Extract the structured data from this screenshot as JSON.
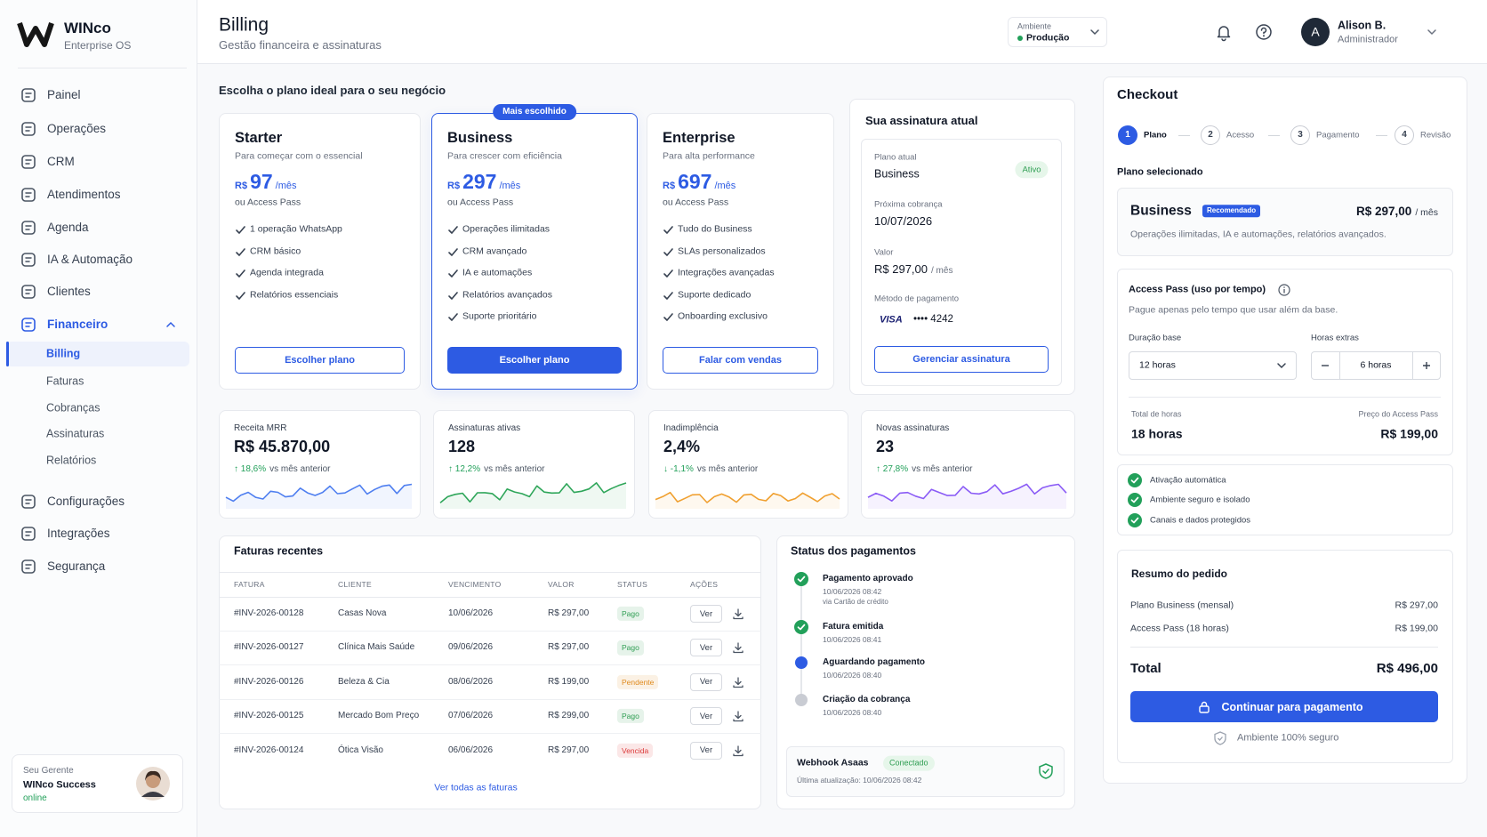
{
  "sidebar": {
    "brand_name": "WINco",
    "brand_subtitle": "Enterprise OS",
    "nav": [
      "Painel",
      "Operações",
      "CRM",
      "Atendimentos",
      "Agenda",
      "IA & Automação",
      "Clientes",
      "Financeiro"
    ],
    "subnav": [
      "Billing",
      "Faturas",
      "Cobranças",
      "Assinaturas",
      "Relatórios"
    ],
    "nav_bottom": [
      "Configurações",
      "Integrações",
      "Segurança"
    ],
    "manager": {
      "label": "Seu Gerente",
      "name": "WINco Success",
      "status": "online"
    }
  },
  "header": {
    "title": "Billing",
    "subtitle": "Gestão financeira e assinaturas",
    "env_label": "Ambiente",
    "env_value": "Produção",
    "avatar": "A",
    "user_name": "Alison B.",
    "user_role": "Administrador"
  },
  "plans_heading": "Escolha o plano ideal para o seu negócio",
  "plans": [
    {
      "name": "Starter",
      "description": "Para começar com o essencial",
      "currency": "R$",
      "price": 97,
      "period": "/mês",
      "alt": "ou Access Pass",
      "features": [
        "1 operação WhatsApp",
        "CRM básico",
        "Agenda integrada",
        "Relatórios essenciais"
      ],
      "button": "Escolher plano"
    },
    {
      "name": "Business",
      "badge": "Mais escolhido",
      "description": "Para crescer com eficiência",
      "currency": "R$",
      "price": 297,
      "period": "/mês",
      "alt": "ou Access Pass",
      "features": [
        "Operações ilimitadas",
        "CRM avançado",
        "IA e automações",
        "Relatórios avançados",
        "Suporte prioritário"
      ],
      "button": "Escolher plano"
    },
    {
      "name": "Enterprise",
      "description": "Para alta performance",
      "currency": "R$",
      "price": 697,
      "period": "/mês",
      "alt": "ou Access Pass",
      "features": [
        "Tudo do Business",
        "SLAs personalizados",
        "Integrações avançadas",
        "Suporte dedicado",
        "Onboarding exclusivo"
      ],
      "button": "Falar com vendas"
    }
  ],
  "subscription": {
    "title": "Sua assinatura atual",
    "plan_label": "Plano atual",
    "plan": "Business",
    "status": "Ativo",
    "next_label": "Próxima cobrança",
    "next": "10/07/2026",
    "value_label": "Valor",
    "value": "R$ 297,00",
    "period": "/ mês",
    "method_label": "Método de pagamento",
    "card_brand": "VISA",
    "card_number": "•••• 4242",
    "button": "Gerenciar assinatura"
  },
  "kpis": [
    {
      "label": "Receita MRR",
      "value": "R$ 45.870,00",
      "change": "↑ 18,6%",
      "change_text": "vs mês anterior",
      "color": "#4f7ff0"
    },
    {
      "label": "Assinaturas ativas",
      "value": "128",
      "change": "↑ 12,2%",
      "change_text": "vs mês anterior",
      "color": "#2fa65a"
    },
    {
      "label": "Inadimplência",
      "value": "2,4%",
      "change": "↓ -1,1%",
      "change_text": "vs mês anterior",
      "color": "#f0a030"
    },
    {
      "label": "Novas assinaturas",
      "value": "23",
      "change": "↑ 27,8%",
      "change_text": "vs mês anterior",
      "color": "#8b5cf6"
    }
  ],
  "invoices": {
    "title": "Faturas recentes",
    "columns": [
      "FATURA",
      "CLIENTE",
      "VENCIMENTO",
      "VALOR",
      "STATUS",
      "AÇÕES"
    ],
    "rows": [
      {
        "invoice": "#INV-2026-00128",
        "client": "Casas Nova",
        "due": "10/06/2026",
        "value": "R$ 297,00",
        "status": "Pago",
        "status_color": "#2f9e53"
      },
      {
        "invoice": "#INV-2026-00127",
        "client": "Clínica Mais Saúde",
        "due": "09/06/2026",
        "value": "R$ 297,00",
        "status": "Pago",
        "status_color": "#2f9e53"
      },
      {
        "invoice": "#INV-2026-00126",
        "client": "Beleza & Cia",
        "due": "08/06/2026",
        "value": "R$ 199,00",
        "status": "Pendente",
        "status_color": "#e08a1e"
      },
      {
        "invoice": "#INV-2026-00125",
        "client": "Mercado Bom Preço",
        "due": "07/06/2026",
        "value": "R$ 299,00",
        "status": "Pago",
        "status_color": "#2f9e53"
      },
      {
        "invoice": "#INV-2026-00124",
        "client": "Ótica Visão",
        "due": "06/06/2026",
        "value": "R$ 297,00",
        "status": "Vencida",
        "status_color": "#dc3b3b"
      }
    ],
    "action": "Ver",
    "footer": "Ver todas as faturas"
  },
  "payment_status": {
    "title": "Status dos pagamentos",
    "events": [
      {
        "title": "Pagamento aprovado",
        "time": "10/06/2026 08:42",
        "detail": "via Cartão de crédito",
        "color": "#22a05a"
      },
      {
        "title": "Fatura emitida",
        "time": "10/06/2026 08:41",
        "color": "#22a05a"
      },
      {
        "title": "Aguardando pagamento",
        "time": "10/06/2026 08:40",
        "color": "#2d5be3"
      },
      {
        "title": "Criação da cobrança",
        "time": "10/06/2026 08:40",
        "color": "#c9ccd3"
      }
    ],
    "webhook": {
      "name": "Webhook Asaas",
      "status": "Conectado",
      "updated": "Última atualização: 10/06/2026 08:42"
    }
  },
  "checkout": {
    "title": "Checkout",
    "steps": [
      {
        "number": 1,
        "label": "Plano"
      },
      {
        "number": 2,
        "label": "Acesso"
      },
      {
        "number": 3,
        "label": "Pagamento"
      },
      {
        "number": 4,
        "label": "Revisão"
      }
    ],
    "selected_label": "Plano selecionado",
    "plan": {
      "name": "Business",
      "badge": "Recomendado",
      "price": "R$ 297,00",
      "period": "/ mês",
      "description": "Operações ilimitadas, IA e automações, relatórios avançados."
    },
    "access": {
      "title": "Access Pass (uso por tempo)",
      "description": "Pague apenas pelo tempo que usar além da base.",
      "duration_label": "Duração base",
      "duration": "12 horas",
      "extra_label": "Horas extras",
      "extra": "6 horas",
      "total_hours_label": "Total de horas",
      "total_hours": "18 horas",
      "price_label": "Preço do Access Pass",
      "price": "R$ 199,00"
    },
    "features": [
      "Ativação automática",
      "Ambiente seguro e isolado",
      "Canais e dados protegidos"
    ],
    "summary": {
      "title": "Resumo do pedido",
      "items": [
        {
          "label": "Plano Business (mensal)",
          "value": "R$ 297,00"
        },
        {
          "label": "Access Pass (18 horas)",
          "value": "R$ 199,00"
        }
      ],
      "total_label": "Total",
      "total": "R$ 496,00",
      "button": "Continuar para pagamento",
      "secure": "Ambiente 100% seguro"
    }
  }
}
